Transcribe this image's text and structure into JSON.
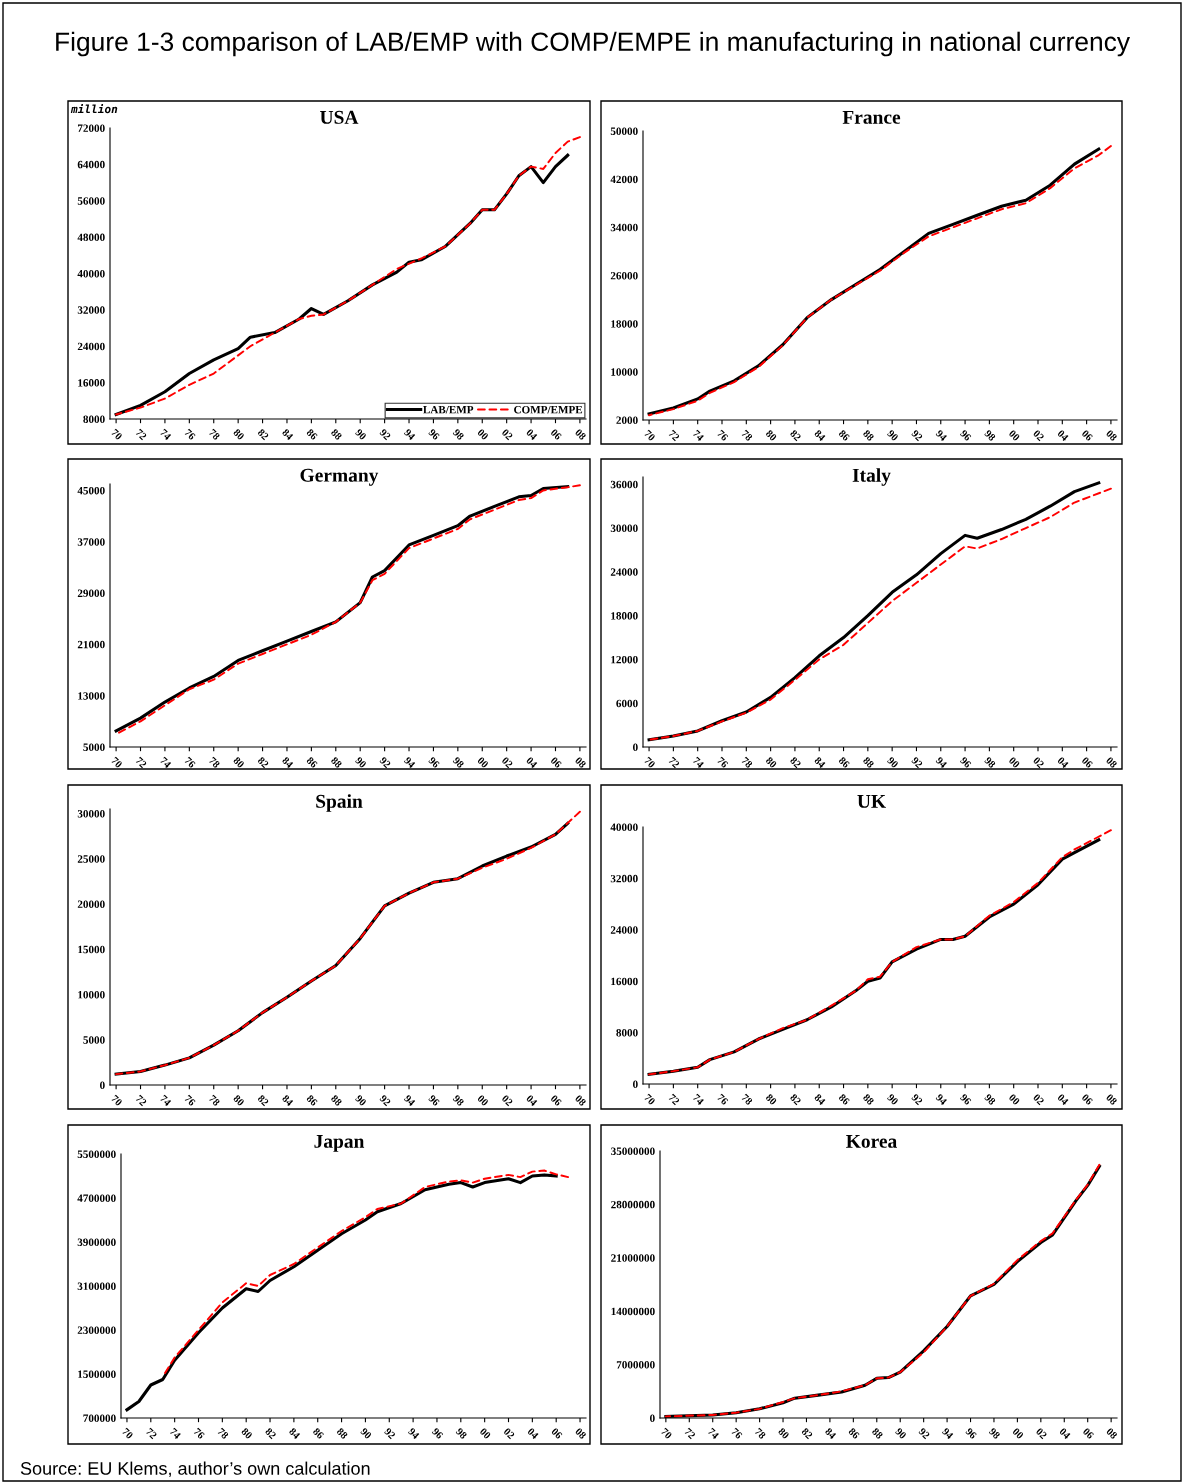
{
  "chart_data": [
    {
      "type": "line",
      "title": "USA",
      "ylabel": "million",
      "annotations": [
        "Figure 1-3 comparison of LAB/EMP with COMP/EMPE in manufacturing in national currency",
        "Source: EU Klems, author’s own calculation"
      ],
      "legend": "bottom right",
      "xlim": [
        1969.5,
        2008.5
      ],
      "xticks": [
        {
          "value": 1970,
          "label": "70"
        },
        {
          "value": 1972,
          "label": "72"
        },
        {
          "value": 1974,
          "label": "74"
        },
        {
          "value": 1976,
          "label": "76"
        },
        {
          "value": 1978,
          "label": "78"
        },
        {
          "value": 1980,
          "label": "80"
        },
        {
          "value": 1982,
          "label": "82"
        },
        {
          "value": 1984,
          "label": "84"
        },
        {
          "value": 1986,
          "label": "86"
        },
        {
          "value": 1988,
          "label": "88"
        },
        {
          "value": 1990,
          "label": "90"
        },
        {
          "value": 1992,
          "label": "92"
        },
        {
          "value": 1994,
          "label": "94"
        },
        {
          "value": 1996,
          "label": "96"
        },
        {
          "value": 1998,
          "label": "98"
        },
        {
          "value": 2000,
          "label": "00"
        },
        {
          "value": 2002,
          "label": "02"
        },
        {
          "value": 2004,
          "label": "04"
        },
        {
          "value": 2006,
          "label": "06"
        },
        {
          "value": 2008,
          "label": "08"
        }
      ],
      "ylim": [
        8000,
        72000
      ],
      "yticks": [
        8000,
        16000,
        24000,
        32000,
        40000,
        48000,
        56000,
        64000,
        72000
      ],
      "series": [
        {
          "name": "LAB/EMP",
          "color": "#000000",
          "line_style": "solid",
          "x": [
            1970,
            1972,
            1974,
            1976,
            1978,
            1980,
            1981,
            1983,
            1985,
            1986,
            1987,
            1989,
            1991,
            1993,
            1994,
            1995,
            1997,
            1999,
            2000,
            2001,
            2002,
            2003,
            2004,
            2005,
            2006,
            2007
          ],
          "values": [
            9000,
            11000,
            14000,
            18000,
            21000,
            23500,
            26000,
            27000,
            30000,
            32300,
            31000,
            34000,
            37500,
            40300,
            42500,
            43000,
            46000,
            51000,
            54000,
            54000,
            57500,
            61500,
            63500,
            60000,
            63500,
            66000
          ]
        },
        {
          "name": "COMP/EMPE",
          "color": "#ff0000",
          "line_style": "dashed",
          "x": [
            1970,
            1972,
            1974,
            1976,
            1978,
            1979,
            1981,
            1983,
            1985,
            1986,
            1987,
            1989,
            1991,
            1993,
            1995,
            1997,
            1999,
            2000,
            2001,
            2002,
            2003,
            2004,
            2005,
            2006,
            2007,
            2008
          ],
          "values": [
            9000,
            10500,
            12500,
            15500,
            18000,
            20000,
            24000,
            27000,
            30000,
            30700,
            31000,
            34000,
            37500,
            41000,
            43300,
            46000,
            51000,
            54000,
            54000,
            57500,
            61500,
            63500,
            63000,
            66500,
            69000,
            70000
          ]
        }
      ]
    },
    {
      "type": "line",
      "title": "France",
      "xlim": [
        1969.5,
        2008.5
      ],
      "xticks": [
        {
          "value": 1970,
          "label": "70"
        },
        {
          "value": 1972,
          "label": "72"
        },
        {
          "value": 1974,
          "label": "74"
        },
        {
          "value": 1976,
          "label": "76"
        },
        {
          "value": 1978,
          "label": "78"
        },
        {
          "value": 1980,
          "label": "80"
        },
        {
          "value": 1982,
          "label": "82"
        },
        {
          "value": 1984,
          "label": "84"
        },
        {
          "value": 1986,
          "label": "86"
        },
        {
          "value": 1988,
          "label": "88"
        },
        {
          "value": 1990,
          "label": "90"
        },
        {
          "value": 1992,
          "label": "92"
        },
        {
          "value": 1994,
          "label": "94"
        },
        {
          "value": 1996,
          "label": "96"
        },
        {
          "value": 1998,
          "label": "98"
        },
        {
          "value": 2000,
          "label": "00"
        },
        {
          "value": 2002,
          "label": "02"
        },
        {
          "value": 2004,
          "label": "04"
        },
        {
          "value": 2006,
          "label": "06"
        },
        {
          "value": 2008,
          "label": "08"
        }
      ],
      "ylim": [
        2000,
        50000
      ],
      "yticks": [
        2000,
        10000,
        18000,
        26000,
        34000,
        42000,
        50000
      ],
      "series": [
        {
          "color": "#000000",
          "line_style": "solid",
          "x": [
            1970,
            1972,
            1974,
            1975,
            1977,
            1979,
            1981,
            1983,
            1985,
            1987,
            1989,
            1991,
            1993,
            1995,
            1997,
            1999,
            2001,
            2003,
            2005,
            2007
          ],
          "values": [
            3000,
            4000,
            5500,
            6800,
            8500,
            11000,
            14500,
            19000,
            22000,
            24500,
            27000,
            30000,
            33000,
            34500,
            36000,
            37500,
            38500,
            41000,
            44500,
            47000
          ]
        },
        {
          "color": "#ff0000",
          "line_style": "dashed",
          "x": [
            1970,
            1972,
            1974,
            1975,
            1977,
            1979,
            1981,
            1983,
            1985,
            1987,
            1989,
            1991,
            1993,
            1995,
            1997,
            1999,
            2001,
            2003,
            2005,
            2007,
            2008
          ],
          "values": [
            2800,
            3800,
            5200,
            6500,
            8300,
            10800,
            14400,
            19000,
            22000,
            24400,
            26800,
            29800,
            32500,
            34000,
            35500,
            37000,
            38000,
            40500,
            43800,
            46000,
            47500
          ]
        }
      ]
    },
    {
      "type": "line",
      "title": "Germany",
      "xlim": [
        1969.5,
        2008.5
      ],
      "xticks": [
        {
          "value": 1970,
          "label": "70"
        },
        {
          "value": 1972,
          "label": "72"
        },
        {
          "value": 1974,
          "label": "74"
        },
        {
          "value": 1976,
          "label": "76"
        },
        {
          "value": 1978,
          "label": "78"
        },
        {
          "value": 1980,
          "label": "80"
        },
        {
          "value": 1982,
          "label": "82"
        },
        {
          "value": 1984,
          "label": "84"
        },
        {
          "value": 1986,
          "label": "86"
        },
        {
          "value": 1988,
          "label": "88"
        },
        {
          "value": 1990,
          "label": "90"
        },
        {
          "value": 1992,
          "label": "92"
        },
        {
          "value": 1994,
          "label": "94"
        },
        {
          "value": 1996,
          "label": "96"
        },
        {
          "value": 1998,
          "label": "98"
        },
        {
          "value": 2000,
          "label": "00"
        },
        {
          "value": 2002,
          "label": "02"
        },
        {
          "value": 2004,
          "label": "04"
        },
        {
          "value": 2006,
          "label": "06"
        },
        {
          "value": 2008,
          "label": "08"
        }
      ],
      "ylim": [
        5000,
        46000
      ],
      "yticks": [
        5000,
        13000,
        21000,
        29000,
        37000,
        45000
      ],
      "series": [
        {
          "color": "#000000",
          "line_style": "solid",
          "x": [
            1970,
            1972,
            1974,
            1976,
            1978,
            1980,
            1982,
            1984,
            1986,
            1988,
            1990,
            1991,
            1992,
            1994,
            1996,
            1998,
            1999,
            2001,
            2003,
            2004,
            2005,
            2007
          ],
          "values": [
            7500,
            9500,
            12000,
            14200,
            16000,
            18500,
            20000,
            21500,
            23000,
            24500,
            27500,
            31500,
            32500,
            36500,
            38000,
            39500,
            41000,
            42500,
            44000,
            44200,
            45300,
            45600
          ]
        },
        {
          "color": "#ff0000",
          "line_style": "dashed",
          "x": [
            1970,
            1972,
            1974,
            1976,
            1978,
            1980,
            1982,
            1984,
            1986,
            1988,
            1990,
            1991,
            1992,
            1994,
            1996,
            1998,
            1999,
            2001,
            2003,
            2004,
            2005,
            2007,
            2008
          ],
          "values": [
            7000,
            9000,
            11500,
            14000,
            15500,
            18000,
            19500,
            21000,
            22500,
            24500,
            27500,
            31000,
            32000,
            36000,
            37500,
            39000,
            40500,
            42000,
            43500,
            43800,
            45000,
            45500,
            45800
          ]
        }
      ]
    },
    {
      "type": "line",
      "title": "Italy",
      "xlim": [
        1969.5,
        2008.5
      ],
      "xticks": [
        {
          "value": 1970,
          "label": "70"
        },
        {
          "value": 1972,
          "label": "72"
        },
        {
          "value": 1974,
          "label": "74"
        },
        {
          "value": 1976,
          "label": "76"
        },
        {
          "value": 1978,
          "label": "78"
        },
        {
          "value": 1980,
          "label": "80"
        },
        {
          "value": 1982,
          "label": "82"
        },
        {
          "value": 1984,
          "label": "84"
        },
        {
          "value": 1986,
          "label": "86"
        },
        {
          "value": 1988,
          "label": "88"
        },
        {
          "value": 1990,
          "label": "90"
        },
        {
          "value": 1992,
          "label": "92"
        },
        {
          "value": 1994,
          "label": "94"
        },
        {
          "value": 1996,
          "label": "96"
        },
        {
          "value": 1998,
          "label": "98"
        },
        {
          "value": 2000,
          "label": "00"
        },
        {
          "value": 2002,
          "label": "02"
        },
        {
          "value": 2004,
          "label": "04"
        },
        {
          "value": 2006,
          "label": "06"
        },
        {
          "value": 2008,
          "label": "08"
        }
      ],
      "ylim": [
        0,
        37000
      ],
      "yticks": [
        0,
        6000,
        12000,
        18000,
        24000,
        30000,
        36000
      ],
      "series": [
        {
          "color": "#000000",
          "line_style": "solid",
          "x": [
            1970,
            1972,
            1974,
            1976,
            1978,
            1980,
            1982,
            1984,
            1986,
            1988,
            1990,
            1992,
            1994,
            1996,
            1997,
            1999,
            2001,
            2003,
            2005,
            2007
          ],
          "values": [
            1000,
            1500,
            2200,
            3600,
            4800,
            6800,
            9500,
            12500,
            15000,
            18000,
            21200,
            23600,
            26500,
            29000,
            28600,
            29800,
            31200,
            33000,
            35000,
            36200
          ]
        },
        {
          "color": "#ff0000",
          "line_style": "dashed",
          "x": [
            1970,
            1972,
            1974,
            1976,
            1978,
            1980,
            1982,
            1984,
            1986,
            1988,
            1990,
            1992,
            1994,
            1996,
            1997,
            1999,
            2001,
            2003,
            2005,
            2008
          ],
          "values": [
            1000,
            1500,
            2200,
            3500,
            4700,
            6500,
            9200,
            12000,
            14000,
            17000,
            20000,
            22500,
            25000,
            27500,
            27200,
            28500,
            30000,
            31500,
            33500,
            35400
          ]
        }
      ]
    },
    {
      "type": "line",
      "title": "Spain",
      "xlim": [
        1969.5,
        2008.5
      ],
      "xticks": [
        {
          "value": 1970,
          "label": "70"
        },
        {
          "value": 1972,
          "label": "72"
        },
        {
          "value": 1974,
          "label": "74"
        },
        {
          "value": 1976,
          "label": "76"
        },
        {
          "value": 1978,
          "label": "78"
        },
        {
          "value": 1980,
          "label": "80"
        },
        {
          "value": 1982,
          "label": "82"
        },
        {
          "value": 1984,
          "label": "84"
        },
        {
          "value": 1986,
          "label": "86"
        },
        {
          "value": 1988,
          "label": "88"
        },
        {
          "value": 1990,
          "label": "90"
        },
        {
          "value": 1992,
          "label": "92"
        },
        {
          "value": 1994,
          "label": "94"
        },
        {
          "value": 1996,
          "label": "96"
        },
        {
          "value": 1998,
          "label": "98"
        },
        {
          "value": 2000,
          "label": "00"
        },
        {
          "value": 2002,
          "label": "02"
        },
        {
          "value": 2004,
          "label": "04"
        },
        {
          "value": 2006,
          "label": "06"
        },
        {
          "value": 2008,
          "label": "08"
        }
      ],
      "ylim": [
        0,
        30500
      ],
      "yticks": [
        0,
        5000,
        10000,
        15000,
        20000,
        25000,
        30000
      ],
      "series": [
        {
          "color": "#000000",
          "line_style": "solid",
          "x": [
            1970,
            1972,
            1974,
            1976,
            1978,
            1980,
            1982,
            1984,
            1986,
            1988,
            1990,
            1992,
            1994,
            1996,
            1998,
            2000,
            2002,
            2004,
            2006,
            2007
          ],
          "values": [
            1200,
            1500,
            2200,
            3000,
            4400,
            6000,
            8000,
            9700,
            11500,
            13200,
            16200,
            19800,
            21200,
            22400,
            22800,
            24200,
            25300,
            26300,
            27700,
            28900
          ]
        },
        {
          "color": "#ff0000",
          "line_style": "dashed",
          "x": [
            1970,
            1972,
            1974,
            1976,
            1978,
            1980,
            1982,
            1984,
            1986,
            1988,
            1990,
            1992,
            1994,
            1996,
            1998,
            2000,
            2002,
            2004,
            2006,
            2008
          ],
          "values": [
            1200,
            1500,
            2200,
            3000,
            4400,
            6000,
            8000,
            9700,
            11500,
            13200,
            16200,
            19800,
            21200,
            22400,
            22800,
            24000,
            25000,
            26200,
            27700,
            30200
          ]
        }
      ]
    },
    {
      "type": "line",
      "title": "UK",
      "xlim": [
        1969.5,
        2008.5
      ],
      "xticks": [
        {
          "value": 1970,
          "label": "70"
        },
        {
          "value": 1972,
          "label": "72"
        },
        {
          "value": 1974,
          "label": "74"
        },
        {
          "value": 1976,
          "label": "76"
        },
        {
          "value": 1978,
          "label": "78"
        },
        {
          "value": 1980,
          "label": "80"
        },
        {
          "value": 1982,
          "label": "82"
        },
        {
          "value": 1984,
          "label": "84"
        },
        {
          "value": 1986,
          "label": "86"
        },
        {
          "value": 1988,
          "label": "88"
        },
        {
          "value": 1990,
          "label": "90"
        },
        {
          "value": 1992,
          "label": "92"
        },
        {
          "value": 1994,
          "label": "94"
        },
        {
          "value": 1996,
          "label": "96"
        },
        {
          "value": 1998,
          "label": "98"
        },
        {
          "value": 2000,
          "label": "00"
        },
        {
          "value": 2002,
          "label": "02"
        },
        {
          "value": 2004,
          "label": "04"
        },
        {
          "value": 2006,
          "label": "06"
        },
        {
          "value": 2008,
          "label": "08"
        }
      ],
      "ylim": [
        0,
        40000
      ],
      "yticks": [
        0,
        8000,
        16000,
        24000,
        32000,
        40000
      ],
      "series": [
        {
          "color": "#000000",
          "line_style": "solid",
          "x": [
            1970,
            1972,
            1974,
            1975,
            1977,
            1979,
            1981,
            1983,
            1985,
            1987,
            1988,
            1989,
            1990,
            1992,
            1994,
            1995,
            1996,
            1998,
            2000,
            2002,
            2004,
            2005,
            2007
          ],
          "values": [
            1500,
            2000,
            2600,
            3800,
            5000,
            7000,
            8500,
            10000,
            12000,
            14500,
            16000,
            16500,
            19000,
            21000,
            22500,
            22500,
            23000,
            26000,
            28000,
            31000,
            35000,
            36000,
            38000
          ]
        },
        {
          "color": "#ff0000",
          "line_style": "dashed",
          "x": [
            1970,
            1972,
            1974,
            1975,
            1977,
            1979,
            1981,
            1983,
            1985,
            1987,
            1988,
            1989,
            1990,
            1992,
            1994,
            1995,
            1996,
            1998,
            2000,
            2002,
            2004,
            2005,
            2008
          ],
          "values": [
            1500,
            2000,
            2600,
            3800,
            5000,
            7000,
            8700,
            10000,
            12200,
            14500,
            16300,
            16700,
            19000,
            21300,
            22500,
            22500,
            23000,
            26200,
            28300,
            31300,
            35300,
            36500,
            39500
          ]
        }
      ]
    },
    {
      "type": "line",
      "title": "Japan",
      "xlim": [
        1969.5,
        2008.5
      ],
      "xticks": [
        {
          "value": 1970,
          "label": "70"
        },
        {
          "value": 1972,
          "label": "72"
        },
        {
          "value": 1974,
          "label": "74"
        },
        {
          "value": 1976,
          "label": "76"
        },
        {
          "value": 1978,
          "label": "78"
        },
        {
          "value": 1980,
          "label": "80"
        },
        {
          "value": 1982,
          "label": "82"
        },
        {
          "value": 1984,
          "label": "84"
        },
        {
          "value": 1986,
          "label": "86"
        },
        {
          "value": 1988,
          "label": "88"
        },
        {
          "value": 1990,
          "label": "90"
        },
        {
          "value": 1992,
          "label": "92"
        },
        {
          "value": 1994,
          "label": "94"
        },
        {
          "value": 1996,
          "label": "96"
        },
        {
          "value": 1998,
          "label": "98"
        },
        {
          "value": 2000,
          "label": "00"
        },
        {
          "value": 2002,
          "label": "02"
        },
        {
          "value": 2004,
          "label": "04"
        },
        {
          "value": 2006,
          "label": "06"
        },
        {
          "value": 2008,
          "label": "08"
        }
      ],
      "ylim": [
        700000,
        5500000
      ],
      "yticks": [
        700000,
        1500000,
        2300000,
        3100000,
        3900000,
        4700000,
        5500000
      ],
      "series": [
        {
          "color": "#000000",
          "line_style": "solid",
          "x": [
            1970,
            1971,
            1972,
            1973,
            1974,
            1976,
            1978,
            1980,
            1981,
            1982,
            1984,
            1986,
            1988,
            1990,
            1991,
            1993,
            1995,
            1997,
            1998,
            1999,
            2000,
            2002,
            2003,
            2004,
            2005,
            2006
          ],
          "values": [
            850000,
            1000000,
            1300000,
            1400000,
            1750000,
            2250000,
            2700000,
            3050000,
            3000000,
            3200000,
            3450000,
            3750000,
            4050000,
            4300000,
            4450000,
            4600000,
            4850000,
            4950000,
            4980000,
            4900000,
            4980000,
            5050000,
            4980000,
            5100000,
            5120000,
            5100000
          ]
        },
        {
          "color": "#ff0000",
          "line_style": "dashed",
          "x": [
            1973,
            1974,
            1976,
            1978,
            1980,
            1981,
            1982,
            1984,
            1986,
            1988,
            1990,
            1991,
            1993,
            1995,
            1997,
            1998,
            1999,
            2000,
            2002,
            2003,
            2004,
            2005,
            2006,
            2007
          ],
          "values": [
            1450000,
            1800000,
            2300000,
            2800000,
            3150000,
            3100000,
            3300000,
            3500000,
            3800000,
            4100000,
            4350000,
            4500000,
            4600000,
            4900000,
            5000000,
            5020000,
            4980000,
            5050000,
            5120000,
            5080000,
            5180000,
            5200000,
            5130000,
            5080000
          ]
        }
      ]
    },
    {
      "type": "line",
      "title": "Korea",
      "xlim": [
        1969.5,
        2008.5
      ],
      "xticks": [
        {
          "value": 1970,
          "label": "70"
        },
        {
          "value": 1972,
          "label": "72"
        },
        {
          "value": 1974,
          "label": "74"
        },
        {
          "value": 1976,
          "label": "76"
        },
        {
          "value": 1978,
          "label": "78"
        },
        {
          "value": 1980,
          "label": "80"
        },
        {
          "value": 1982,
          "label": "82"
        },
        {
          "value": 1984,
          "label": "84"
        },
        {
          "value": 1986,
          "label": "86"
        },
        {
          "value": 1988,
          "label": "88"
        },
        {
          "value": 1990,
          "label": "90"
        },
        {
          "value": 1992,
          "label": "92"
        },
        {
          "value": 1994,
          "label": "94"
        },
        {
          "value": 1996,
          "label": "96"
        },
        {
          "value": 1998,
          "label": "98"
        },
        {
          "value": 2000,
          "label": "00"
        },
        {
          "value": 2002,
          "label": "02"
        },
        {
          "value": 2004,
          "label": "04"
        },
        {
          "value": 2006,
          "label": "06"
        },
        {
          "value": 2008,
          "label": "08"
        }
      ],
      "ylim": [
        0,
        35000000
      ],
      "yticks": [
        0,
        7000000,
        14000000,
        21000000,
        28000000,
        35000000
      ],
      "series": [
        {
          "color": "#000000",
          "line_style": "solid",
          "x": [
            1970,
            1974,
            1976,
            1978,
            1980,
            1981,
            1983,
            1985,
            1987,
            1988,
            1989,
            1990,
            1992,
            1994,
            1996,
            1998,
            2000,
            2002,
            2003,
            2005,
            2006,
            2007
          ],
          "values": [
            200000,
            400000,
            700000,
            1200000,
            2000000,
            2600000,
            3000000,
            3400000,
            4300000,
            5200000,
            5300000,
            6000000,
            8800000,
            12000000,
            16000000,
            17500000,
            20500000,
            23000000,
            24000000,
            28500000,
            30500000,
            33000000
          ]
        },
        {
          "color": "#ff0000",
          "line_style": "dashed",
          "x": [
            1970,
            1974,
            1976,
            1978,
            1980,
            1981,
            1983,
            1985,
            1987,
            1988,
            1989,
            1990,
            1992,
            1994,
            1996,
            1998,
            2000,
            2002,
            2003,
            2005,
            2006,
            2007
          ],
          "values": [
            200000,
            400000,
            700000,
            1200000,
            2100000,
            2600000,
            3000000,
            3500000,
            4300000,
            5200000,
            5300000,
            6000000,
            8600000,
            12000000,
            16000000,
            17600000,
            20700000,
            23200000,
            24200000,
            28600000,
            30600000,
            33200000
          ]
        }
      ]
    }
  ]
}
